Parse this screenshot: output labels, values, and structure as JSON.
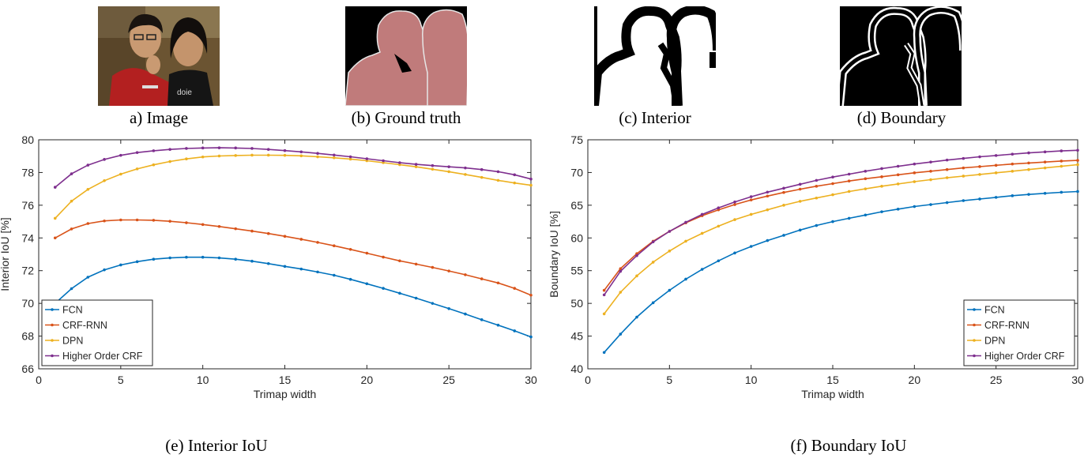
{
  "panels": {
    "a": {
      "caption": "a) Image"
    },
    "b": {
      "caption": "(b) Ground truth"
    },
    "c": {
      "caption": "(c) Interior"
    },
    "d": {
      "caption": "(d) Boundary"
    },
    "e": {
      "caption": "(e) Interior IoU"
    },
    "f": {
      "caption": "(f) Boundary IoU"
    }
  },
  "colors": {
    "FCN": "#0072bd",
    "CRF-RNN": "#d95319",
    "DPN": "#edb120",
    "Higher Order CRF": "#7e2f8e",
    "mask_fill": "#c07b7b"
  },
  "chart_data": [
    {
      "id": "interior",
      "type": "line",
      "xlabel": "Trimap width",
      "ylabel": "Interior IoU [%]",
      "xlim": [
        0,
        30
      ],
      "ylim": [
        66,
        80
      ],
      "xticks": [
        0,
        5,
        10,
        15,
        20,
        25,
        30
      ],
      "yticks": [
        66,
        68,
        70,
        72,
        74,
        76,
        78,
        80
      ],
      "legend_position": "bottom-left",
      "grid": false,
      "x": [
        1,
        2,
        3,
        4,
        5,
        6,
        7,
        8,
        9,
        10,
        11,
        12,
        13,
        14,
        15,
        16,
        17,
        18,
        19,
        20,
        21,
        22,
        23,
        24,
        25,
        26,
        27,
        28,
        29,
        30
      ],
      "series": [
        {
          "name": "FCN",
          "values": [
            70.0,
            70.9,
            71.6,
            72.05,
            72.35,
            72.55,
            72.7,
            72.78,
            72.82,
            72.82,
            72.78,
            72.7,
            72.58,
            72.43,
            72.26,
            72.1,
            71.92,
            71.72,
            71.47,
            71.2,
            70.92,
            70.62,
            70.32,
            70.0,
            69.68,
            69.35,
            69.0,
            68.67,
            68.32,
            67.95
          ]
        },
        {
          "name": "CRF-RNN",
          "values": [
            74.0,
            74.55,
            74.88,
            75.04,
            75.1,
            75.1,
            75.08,
            75.02,
            74.93,
            74.82,
            74.7,
            74.56,
            74.42,
            74.27,
            74.1,
            73.92,
            73.73,
            73.52,
            73.3,
            73.07,
            72.83,
            72.6,
            72.4,
            72.2,
            71.98,
            71.75,
            71.5,
            71.25,
            70.92,
            70.5
          ]
        },
        {
          "name": "DPN",
          "values": [
            75.2,
            76.25,
            76.97,
            77.5,
            77.9,
            78.22,
            78.47,
            78.67,
            78.83,
            78.95,
            79.01,
            79.04,
            79.06,
            79.06,
            79.05,
            79.02,
            78.96,
            78.9,
            78.82,
            78.72,
            78.6,
            78.48,
            78.35,
            78.2,
            78.05,
            77.88,
            77.7,
            77.52,
            77.36,
            77.22
          ]
        },
        {
          "name": "Higher Order CRF",
          "values": [
            77.1,
            77.92,
            78.45,
            78.8,
            79.05,
            79.22,
            79.33,
            79.41,
            79.47,
            79.5,
            79.51,
            79.5,
            79.47,
            79.41,
            79.34,
            79.26,
            79.17,
            79.07,
            78.96,
            78.84,
            78.72,
            78.6,
            78.5,
            78.42,
            78.35,
            78.28,
            78.18,
            78.05,
            77.86,
            77.6
          ]
        }
      ]
    },
    {
      "id": "boundary",
      "type": "line",
      "xlabel": "Trimap width",
      "ylabel": "Boundary IoU [%]",
      "xlim": [
        0,
        30
      ],
      "ylim": [
        40,
        75
      ],
      "xticks": [
        0,
        5,
        10,
        15,
        20,
        25,
        30
      ],
      "yticks": [
        40,
        45,
        50,
        55,
        60,
        65,
        70,
        75
      ],
      "legend_position": "bottom-right",
      "grid": false,
      "x": [
        1,
        2,
        3,
        4,
        5,
        6,
        7,
        8,
        9,
        10,
        11,
        12,
        13,
        14,
        15,
        16,
        17,
        18,
        19,
        20,
        21,
        22,
        23,
        24,
        25,
        26,
        27,
        28,
        29,
        30
      ],
      "series": [
        {
          "name": "FCN",
          "values": [
            42.5,
            45.3,
            47.9,
            50.1,
            52.0,
            53.7,
            55.2,
            56.5,
            57.7,
            58.7,
            59.6,
            60.4,
            61.2,
            61.9,
            62.5,
            63.0,
            63.5,
            64.0,
            64.4,
            64.8,
            65.1,
            65.4,
            65.7,
            65.95,
            66.2,
            66.45,
            66.65,
            66.82,
            66.98,
            67.1
          ]
        },
        {
          "name": "CRF-RNN",
          "values": [
            52.0,
            55.3,
            57.6,
            59.5,
            61.0,
            62.3,
            63.4,
            64.3,
            65.1,
            65.8,
            66.4,
            66.95,
            67.45,
            67.9,
            68.3,
            68.7,
            69.05,
            69.35,
            69.65,
            69.95,
            70.2,
            70.45,
            70.7,
            70.9,
            71.1,
            71.3,
            71.45,
            71.6,
            71.75,
            71.85
          ]
        },
        {
          "name": "DPN",
          "values": [
            48.4,
            51.7,
            54.2,
            56.3,
            58.0,
            59.5,
            60.7,
            61.8,
            62.8,
            63.6,
            64.3,
            65.0,
            65.6,
            66.1,
            66.6,
            67.1,
            67.5,
            67.9,
            68.25,
            68.6,
            68.9,
            69.2,
            69.45,
            69.7,
            69.95,
            70.2,
            70.45,
            70.7,
            70.95,
            71.2
          ]
        },
        {
          "name": "Higher Order CRF",
          "values": [
            51.3,
            54.9,
            57.3,
            59.4,
            61.0,
            62.4,
            63.6,
            64.6,
            65.5,
            66.3,
            67.0,
            67.6,
            68.2,
            68.8,
            69.3,
            69.75,
            70.2,
            70.6,
            70.95,
            71.3,
            71.6,
            71.9,
            72.15,
            72.4,
            72.6,
            72.8,
            73.0,
            73.15,
            73.3,
            73.4
          ]
        }
      ]
    }
  ]
}
